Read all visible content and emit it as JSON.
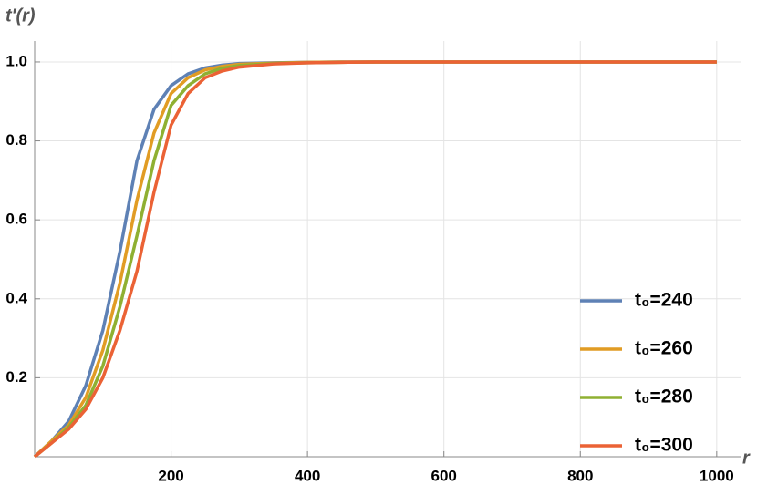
{
  "chart_data": {
    "type": "line",
    "xlabel": "r",
    "ylabel": "t′(r)",
    "x": [
      0,
      25,
      50,
      75,
      100,
      125,
      150,
      175,
      200,
      225,
      250,
      275,
      300,
      350,
      400,
      450,
      500,
      600,
      700,
      800,
      900,
      1000
    ],
    "series": [
      {
        "name": "t₀=240",
        "color": "#5e81b5",
        "values": [
          0,
          0.04,
          0.09,
          0.18,
          0.32,
          0.52,
          0.75,
          0.88,
          0.94,
          0.97,
          0.985,
          0.992,
          0.996,
          0.998,
          0.999,
          1,
          1,
          1,
          1,
          1,
          1,
          1
        ]
      },
      {
        "name": "t₀=260",
        "color": "#e19c24",
        "values": [
          0,
          0.04,
          0.08,
          0.15,
          0.27,
          0.44,
          0.65,
          0.82,
          0.92,
          0.96,
          0.98,
          0.989,
          0.994,
          0.997,
          0.999,
          1,
          1,
          1,
          1,
          1,
          1,
          1
        ]
      },
      {
        "name": "t₀=280",
        "color": "#8fb032",
        "values": [
          0,
          0.035,
          0.075,
          0.13,
          0.23,
          0.38,
          0.56,
          0.75,
          0.89,
          0.94,
          0.97,
          0.984,
          0.991,
          0.996,
          0.998,
          0.999,
          1,
          1,
          1,
          1,
          1,
          1
        ]
      },
      {
        "name": "t₀=300",
        "color": "#eb6235",
        "values": [
          0,
          0.035,
          0.07,
          0.12,
          0.2,
          0.32,
          0.47,
          0.67,
          0.84,
          0.92,
          0.96,
          0.977,
          0.987,
          0.995,
          0.998,
          0.999,
          1,
          1,
          1,
          1,
          1,
          1
        ]
      }
    ],
    "xlim": [
      0,
      1035
    ],
    "ylim": [
      0,
      1.053
    ],
    "xticks": [
      200,
      400,
      600,
      800,
      1000
    ],
    "yticks": [
      0.2,
      0.4,
      0.6,
      0.8,
      {
        "value": 1,
        "label": "1.0"
      }
    ],
    "grid": true,
    "legend": "lower right"
  }
}
